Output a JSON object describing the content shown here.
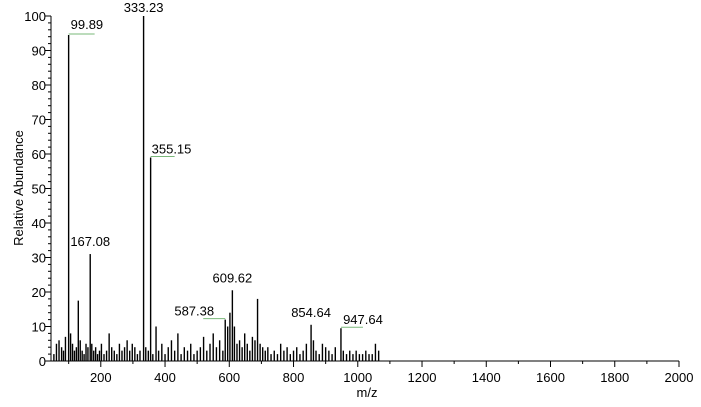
{
  "chart_data": {
    "type": "bar",
    "title": "",
    "xlabel": "m/z",
    "ylabel": "Relative Abundance",
    "xlim": [
      45,
      2000
    ],
    "ylim": [
      0,
      100
    ],
    "x_ticks": [
      200,
      400,
      600,
      800,
      1000,
      1200,
      1400,
      1600,
      1800,
      2000
    ],
    "y_ticks": [
      0,
      10,
      20,
      30,
      40,
      50,
      60,
      70,
      80,
      90,
      100
    ],
    "grid": false,
    "legend": "none",
    "colors": {
      "bars": "#000000",
      "axes": "#000000",
      "label_leader": "#7ab87a"
    },
    "series": [
      {
        "x": [
          54,
          62,
          70,
          78,
          84,
          90,
          99.89,
          106,
          112,
          118,
          124,
          130,
          136,
          142,
          148,
          154,
          160,
          167.08,
          172,
          178,
          184,
          190,
          196,
          202,
          210,
          218,
          226,
          234,
          242,
          250,
          258,
          266,
          274,
          282,
          290,
          298,
          306,
          314,
          322,
          333.23,
          340,
          348,
          355.15,
          362,
          372,
          380,
          390,
          400,
          410,
          420,
          430,
          440,
          450,
          460,
          470,
          480,
          490,
          500,
          510,
          520,
          530,
          540,
          550,
          560,
          570,
          580,
          587.38,
          595,
          602,
          609.62,
          616,
          624,
          632,
          640,
          648,
          656,
          664,
          672,
          680,
          688,
          696,
          704,
          712,
          720,
          730,
          740,
          750,
          760,
          770,
          780,
          790,
          800,
          810,
          820,
          830,
          840,
          854.64,
          862,
          870,
          880,
          890,
          900,
          910,
          920,
          930,
          947.64,
          955,
          965,
          975,
          985,
          995,
          1005,
          1015,
          1025,
          1035,
          1045,
          1055,
          1065
        ],
        "values": [
          2,
          5,
          6,
          4,
          3,
          7,
          94.5,
          8,
          5,
          3,
          4,
          17.5,
          6,
          3,
          2,
          5,
          4,
          31,
          5,
          3,
          4,
          2,
          3,
          5,
          2,
          3,
          8,
          4,
          3,
          2,
          5,
          3,
          4,
          6,
          3,
          5,
          4,
          2,
          3,
          100,
          4,
          3,
          59,
          2,
          10,
          3,
          5,
          2,
          4,
          6,
          3,
          8,
          2,
          4,
          3,
          5,
          2,
          3,
          4,
          7,
          3,
          5,
          8,
          4,
          6,
          3,
          12,
          10,
          14,
          20.5,
          10,
          5,
          6,
          4,
          8,
          5,
          3,
          7,
          6,
          18,
          5,
          4,
          3,
          4,
          2,
          3,
          2,
          5,
          3,
          4,
          2,
          3,
          4,
          2,
          3,
          5,
          10.5,
          6,
          3,
          2,
          5,
          4,
          3,
          2,
          4,
          9.5,
          3,
          2,
          3,
          2,
          3,
          2,
          2,
          3,
          2,
          2,
          5,
          3
        ]
      }
    ],
    "annotations": [
      {
        "x": 99.89,
        "y": 94.5,
        "text": "99.89"
      },
      {
        "x": 333.23,
        "y": 100,
        "text": "333.23"
      },
      {
        "x": 355.15,
        "y": 59,
        "text": "355.15"
      },
      {
        "x": 167.08,
        "y": 31,
        "text": "167.08"
      },
      {
        "x": 587.38,
        "y": 12,
        "text": "587.38"
      },
      {
        "x": 609.62,
        "y": 20.5,
        "text": "609.62"
      },
      {
        "x": 854.64,
        "y": 10.5,
        "text": "854.64"
      },
      {
        "x": 947.64,
        "y": 9.5,
        "text": "947.64"
      }
    ]
  }
}
